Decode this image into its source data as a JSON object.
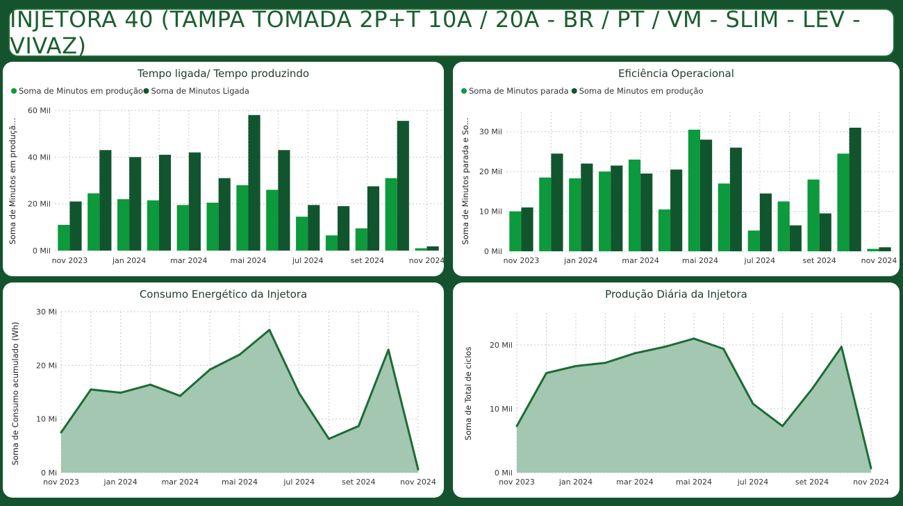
{
  "page_title": "INJETORA 40 (TAMPA TOMADA 2P+T 10A / 20A - BR / PT / VM - SLIM - LEV - VIVAZ)",
  "colors": {
    "light_green": "#0c9a3c",
    "dark_green": "#11552e",
    "area_line": "#1c6b34",
    "area_fill": "#a3c7b0"
  },
  "chart_data": [
    {
      "type": "bar",
      "title": "Tempo ligada/ Tempo produzindo",
      "ylabel": "Soma de Minutos em produçã...",
      "xlabel": "",
      "categories": [
        "nov 2023",
        "dez 2023",
        "jan 2024",
        "fev 2024",
        "mar 2024",
        "abr 2024",
        "mai 2024",
        "jun 2024",
        "jul 2024",
        "ago 2024",
        "set 2024",
        "out 2024",
        "nov 2024"
      ],
      "x_tick_labels": [
        "nov 2023",
        "jan 2024",
        "mar 2024",
        "mai 2024",
        "jul 2024",
        "set 2024",
        "nov 2024"
      ],
      "series": [
        {
          "name": "Soma de Minutos em produção",
          "color": "#0c9a3c",
          "values": [
            11,
            24.5,
            22,
            21.5,
            19.5,
            20.5,
            28,
            26,
            14.5,
            6.5,
            9.5,
            31,
            1
          ]
        },
        {
          "name": "Soma de Minutos Ligada",
          "color": "#11552e",
          "values": [
            21,
            43,
            40,
            41,
            42,
            31,
            58,
            43,
            19.5,
            19,
            27.5,
            55.5,
            1.8
          ]
        }
      ],
      "ylim": [
        0,
        60
      ],
      "yticks": [
        0,
        20,
        40,
        60
      ],
      "ytick_labels": [
        "0 Mil",
        "20 Mil",
        "40 Mil",
        "60 Mil"
      ],
      "legend": "top-left",
      "grid": true
    },
    {
      "type": "bar",
      "title": "Eficiência Operacional",
      "ylabel": "Soma de Minutos parada e So...",
      "xlabel": "",
      "categories": [
        "nov 2023",
        "dez 2023",
        "jan 2024",
        "fev 2024",
        "mar 2024",
        "abr 2024",
        "mai 2024",
        "jun 2024",
        "jul 2024",
        "ago 2024",
        "set 2024",
        "out 2024",
        "nov 2024"
      ],
      "x_tick_labels": [
        "nov 2023",
        "jan 2024",
        "mar 2024",
        "mai 2024",
        "jul 2024",
        "set 2024",
        "nov 2024"
      ],
      "series": [
        {
          "name": "Soma de Minutos parada",
          "color": "#0c9a3c",
          "values": [
            10,
            18.5,
            18.3,
            20,
            23,
            10.5,
            30.5,
            17,
            5.2,
            12.5,
            18,
            24.5,
            0.6
          ]
        },
        {
          "name": "Soma de Minutos em produção",
          "color": "#11552e",
          "values": [
            11,
            24.5,
            22,
            21.5,
            19.5,
            20.5,
            28,
            26,
            14.5,
            6.5,
            9.5,
            31,
            1
          ]
        }
      ],
      "ylim": [
        0,
        35
      ],
      "yticks": [
        0,
        10,
        20,
        30
      ],
      "ytick_labels": [
        "0 Mil",
        "10 Mil",
        "20 Mil",
        "30 Mil"
      ],
      "legend": "top-left",
      "grid": true
    },
    {
      "type": "area",
      "title": "Consumo Energético da Injetora",
      "ylabel": "Soma de Consumo acumulado (Wh)",
      "xlabel": "",
      "x": [
        "nov 2023",
        "dez 2023",
        "jan 2024",
        "fev 2024",
        "mar 2024",
        "abr 2024",
        "mai 2024",
        "jun 2024",
        "jul 2024",
        "ago 2024",
        "set 2024",
        "out 2024",
        "nov 2024"
      ],
      "x_tick_labels": [
        "nov 2023",
        "jan 2024",
        "mar 2024",
        "mai 2024",
        "jul 2024",
        "set 2024",
        "nov 2024"
      ],
      "values": [
        7.5,
        15.5,
        14.9,
        16.4,
        14.3,
        19.2,
        22,
        26.6,
        14.8,
        6.3,
        8.7,
        22.9,
        0.6
      ],
      "ylim": [
        0,
        30
      ],
      "yticks": [
        0,
        10,
        20,
        30
      ],
      "ytick_labels": [
        "0 Mi",
        "10 Mi",
        "20 Mi",
        "30 Mi"
      ],
      "grid": true
    },
    {
      "type": "area",
      "title": "Produção Diária da Injetora",
      "ylabel": "Soma de Total de ciclos",
      "xlabel": "",
      "x": [
        "nov 2023",
        "dez 2023",
        "jan 2024",
        "fev 2024",
        "mar 2024",
        "abr 2024",
        "mai 2024",
        "jun 2024",
        "jul 2024",
        "ago 2024",
        "set 2024",
        "out 2024",
        "nov 2024"
      ],
      "x_tick_labels": [
        "nov 2023",
        "jan 2024",
        "mar 2024",
        "mai 2024",
        "jul 2024",
        "set 2024",
        "nov 2024"
      ],
      "values": [
        7.3,
        15.6,
        16.7,
        17.2,
        18.7,
        19.7,
        21,
        19.4,
        10.8,
        7.3,
        13.1,
        19.7,
        0.7
      ],
      "ylim": [
        0,
        25
      ],
      "yticks": [
        0,
        10,
        20
      ],
      "ytick_labels": [
        "0 Mil",
        "10 Mil",
        "20 Mil"
      ],
      "grid": true
    }
  ]
}
